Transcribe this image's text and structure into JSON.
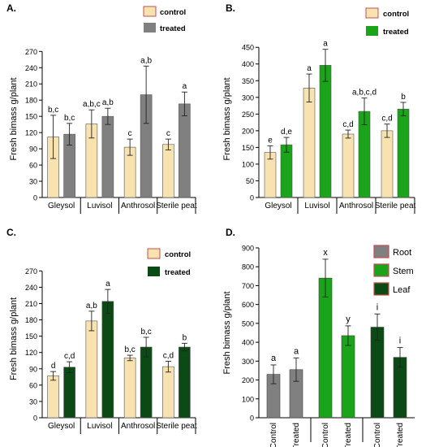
{
  "colors": {
    "control": "#f7e2b0",
    "gray": "#808080",
    "green": "#1aa41a",
    "dark_green": "#0b4a14",
    "root": "#808080",
    "stem": "#1aa41a",
    "leaf": "#0b4a14",
    "axis": "#000000"
  },
  "chart_data": [
    {
      "panel": "A.",
      "type": "bar",
      "ylabel": "Fresh bimass g/plant",
      "ylim": [
        0,
        290
      ],
      "yticks": [
        0,
        30,
        60,
        90,
        120,
        150,
        180,
        210,
        240,
        270
      ],
      "categories": [
        "Gleysol",
        "Luvisol",
        "Anthrosol",
        "Sterile peat"
      ],
      "legend_position": "top-right",
      "series": [
        {
          "name": "control",
          "color_key": "control",
          "values": [
            112,
            136,
            93,
            98
          ],
          "errors": [
            40,
            26,
            15,
            10
          ],
          "labels": [
            "b,c",
            "a,b,c",
            "c",
            "c"
          ]
        },
        {
          "name": "treated",
          "color_key": "gray",
          "values": [
            117,
            150,
            190,
            173
          ],
          "errors": [
            20,
            15,
            53,
            22
          ],
          "labels": [
            "b,c",
            "a,b",
            "a,b",
            "a"
          ]
        }
      ]
    },
    {
      "panel": "B.",
      "type": "bar",
      "ylabel": "Fresh bimass g/plant",
      "ylim": [
        0,
        470
      ],
      "yticks": [
        0,
        50,
        100,
        150,
        200,
        250,
        300,
        350,
        400,
        450
      ],
      "categories": [
        "Gleysol",
        "Luvisol",
        "Anthrosol",
        "Sterile peat"
      ],
      "legend_position": "top-right",
      "series": [
        {
          "name": "control",
          "color_key": "control",
          "values": [
            135,
            328,
            190,
            200
          ],
          "errors": [
            20,
            42,
            12,
            20
          ],
          "labels": [
            "e",
            "a",
            "c,d",
            "c,d"
          ]
        },
        {
          "name": "treated",
          "color_key": "green",
          "values": [
            158,
            396,
            258,
            265
          ],
          "errors": [
            22,
            48,
            40,
            20
          ],
          "labels": [
            "d,e",
            "a",
            "a,b,c,d",
            "b"
          ]
        }
      ]
    },
    {
      "panel": "C.",
      "type": "bar",
      "ylabel": "Fresh bimass g/plant",
      "ylim": [
        0,
        290
      ],
      "yticks": [
        0,
        30,
        60,
        90,
        120,
        150,
        180,
        210,
        240,
        270
      ],
      "categories": [
        "Gleysol",
        "Luvisol",
        "Anthrosol",
        "Sterile peat"
      ],
      "legend_position": "top-right",
      "series": [
        {
          "name": "control",
          "color_key": "control",
          "values": [
            77,
            178,
            110,
            94
          ],
          "errors": [
            8,
            18,
            5,
            10
          ],
          "labels": [
            "d",
            "a,b",
            "b,c",
            "c,d"
          ]
        },
        {
          "name": "treated",
          "color_key": "dark_green",
          "values": [
            93,
            214,
            130,
            130
          ],
          "errors": [
            10,
            22,
            18,
            7
          ],
          "labels": [
            "c,d",
            "a",
            "b,c",
            "b"
          ]
        }
      ]
    },
    {
      "panel": "D.",
      "type": "bar",
      "ylabel": "Fresh bimass g/plant",
      "ylim": [
        0,
        900
      ],
      "yticks": [
        0,
        100,
        200,
        300,
        400,
        500,
        600,
        700,
        800,
        900
      ],
      "legend_position": "top-right",
      "legend": [
        {
          "name": "Root",
          "color_key": "root"
        },
        {
          "name": "Stem",
          "color_key": "stem"
        },
        {
          "name": "Leaf",
          "color_key": "leaf"
        }
      ],
      "groups": [
        "Root",
        "Stem",
        "Leaf"
      ],
      "bars": [
        {
          "group": "Root",
          "x": "Control",
          "value": 230,
          "error": 50,
          "label": "a",
          "color_key": "root"
        },
        {
          "group": "Root",
          "x": "Treated",
          "value": 255,
          "error": 62,
          "label": "a",
          "color_key": "root"
        },
        {
          "group": "Stem",
          "x": "Control",
          "value": 740,
          "error": 100,
          "label": "x",
          "color_key": "stem"
        },
        {
          "group": "Stem",
          "x": "Treated",
          "value": 435,
          "error": 52,
          "label": "y",
          "color_key": "stem"
        },
        {
          "group": "Leaf",
          "x": "Control",
          "value": 480,
          "error": 70,
          "label": "i",
          "color_key": "leaf"
        },
        {
          "group": "Leaf",
          "x": "Treated",
          "value": 320,
          "error": 52,
          "label": "i",
          "color_key": "leaf"
        }
      ]
    }
  ]
}
